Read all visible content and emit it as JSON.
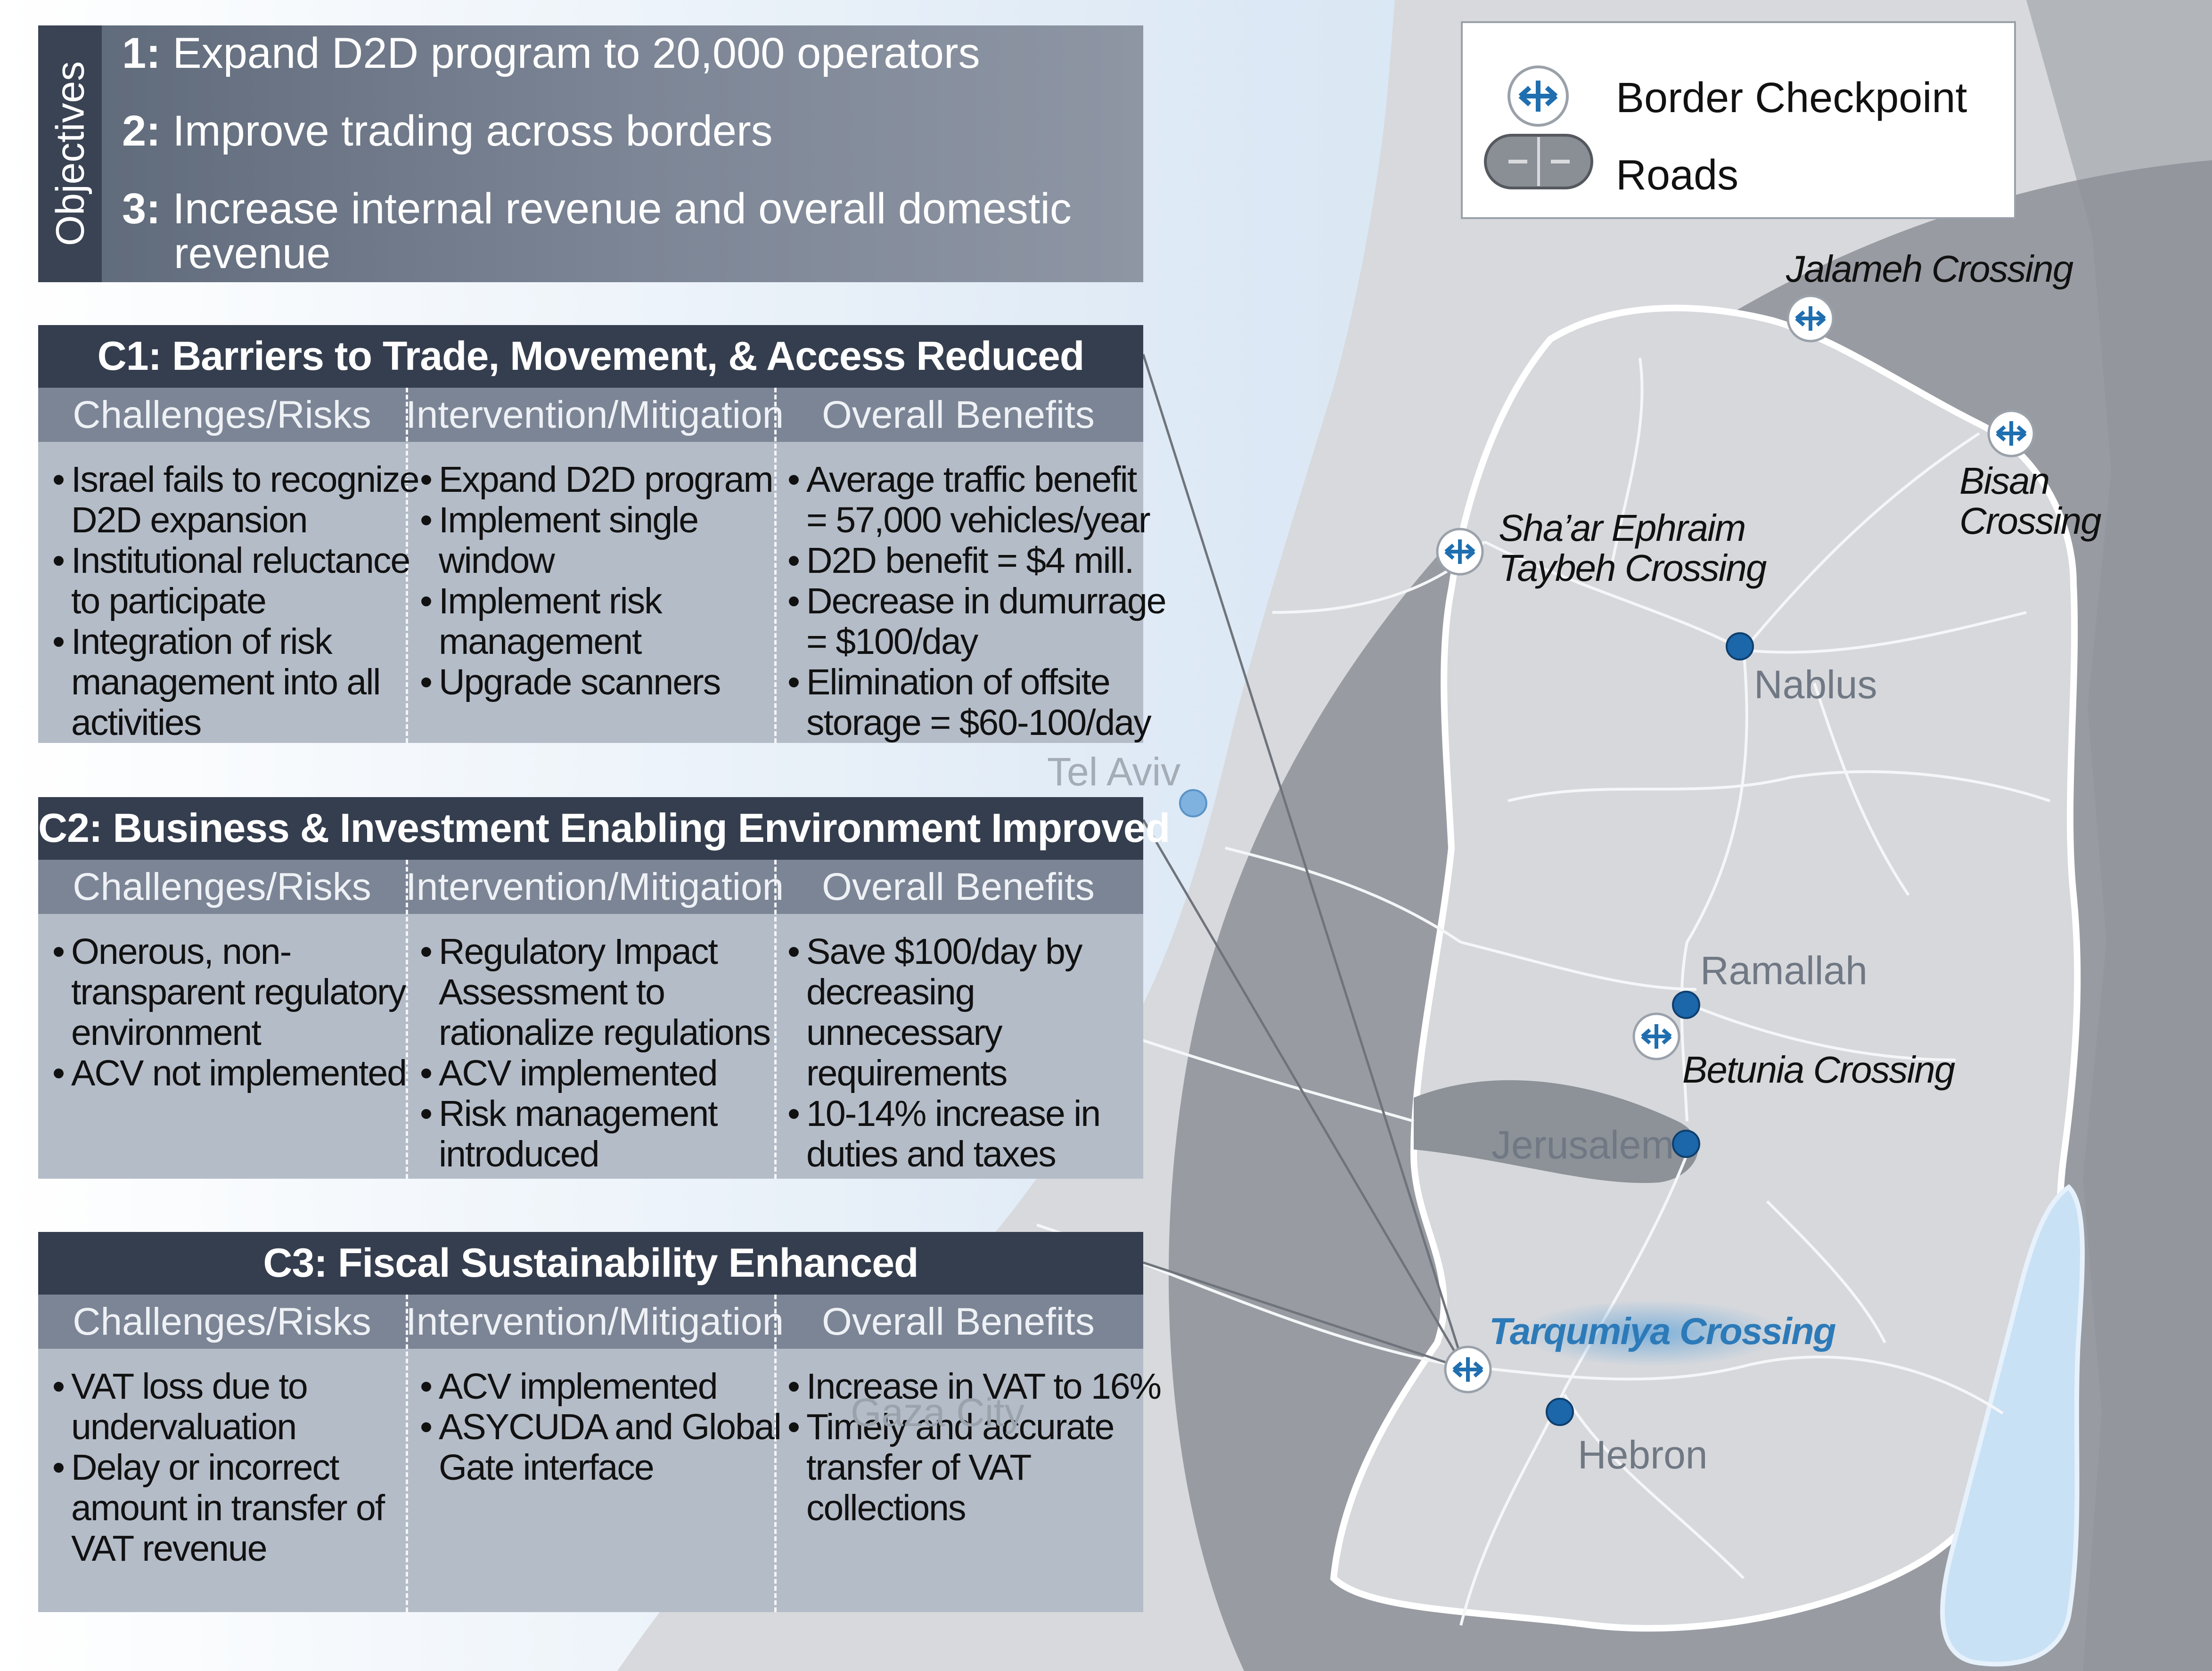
{
  "objectives": {
    "tab_label": "Objectives",
    "items": [
      {
        "num": "1:",
        "text": "Expand D2D program to 20,000 operators"
      },
      {
        "num": "2:",
        "text": "Improve trading across borders"
      },
      {
        "num": "3:",
        "text": "Increase internal revenue and overall domestic",
        "cont": "revenue"
      }
    ]
  },
  "column_headers": [
    "Challenges/Risks",
    "Intervention/Mitigation",
    "Overall Benefits"
  ],
  "cards": [
    {
      "title": "C1: Barriers to Trade, Movement, & Access Reduced",
      "challenges": [
        [
          "Israel fails to recognize",
          "D2D expansion"
        ],
        [
          "Institutional reluctance",
          "to participate"
        ],
        [
          "Integration of risk",
          "management into all",
          "activities"
        ]
      ],
      "interventions": [
        [
          "Expand D2D program"
        ],
        [
          "Implement single",
          "window"
        ],
        [
          "Implement risk",
          "management"
        ],
        [
          "Upgrade scanners"
        ]
      ],
      "benefits": [
        [
          "Average traffic benefit",
          "= 57,000 vehicles/year"
        ],
        [
          "D2D benefit = $4 mill."
        ],
        [
          "Decrease in dumurrage",
          "= $100/day"
        ],
        [
          "Elimination of offsite",
          "storage = $60-100/day"
        ]
      ]
    },
    {
      "title": "C2: Business & Investment Enabling Environment Improved",
      "challenges": [
        [
          "Onerous, non-",
          "transparent regulatory",
          "environment"
        ],
        [
          "ACV not implemented"
        ]
      ],
      "interventions": [
        [
          "Regulatory Impact",
          "Assessment to",
          "rationalize regulations"
        ],
        [
          "ACV implemented"
        ],
        [
          "Risk management",
          "introduced"
        ]
      ],
      "benefits": [
        [
          "Save $100/day by",
          "decreasing",
          "unnecessary",
          "requirements"
        ],
        [
          "10-14% increase in",
          "duties and taxes"
        ]
      ]
    },
    {
      "title": "C3: Fiscal Sustainability Enhanced",
      "challenges": [
        [
          "VAT loss due to",
          "undervaluation"
        ],
        [
          "Delay or incorrect",
          "amount in transfer of",
          "VAT revenue"
        ]
      ],
      "interventions": [
        [
          "ACV implemented"
        ],
        [
          "ASYCUDA and Global",
          "Gate interface"
        ]
      ],
      "benefits": [
        [
          "Increase in VAT to 16%"
        ],
        [
          "Timely and accurate",
          "transfer of VAT",
          "collections"
        ]
      ]
    }
  ],
  "legend": {
    "checkpoint_label": "Border Checkpoint",
    "roads_label": "Roads",
    "checkpoint_icon": "double-arrow-circle-icon",
    "roads_icon": "road-pill-icon"
  },
  "crossings": [
    {
      "name": "Jalameh Crossing"
    },
    {
      "name": "Bisan",
      "name2": "Crossing"
    },
    {
      "name": "Sha’ar Ephraim",
      "name2": "Taybeh Crossing"
    },
    {
      "name": "Betunia Crossing"
    },
    {
      "name": "Tarqumiya Crossing"
    }
  ],
  "cities": [
    "Nablus",
    "Tel Aviv",
    "Ramallah",
    "Jerusalem",
    "Hebron",
    "Gaza City"
  ],
  "colors": {
    "checkpoint_blue": "#1f6fb0",
    "city_dot": "#1c66aa",
    "card_title_bg": "#353e4e",
    "card_body_bg": "#b4bcc8",
    "highlight_label": "#2d7ab8",
    "dead_sea": "#c9e1f5"
  }
}
